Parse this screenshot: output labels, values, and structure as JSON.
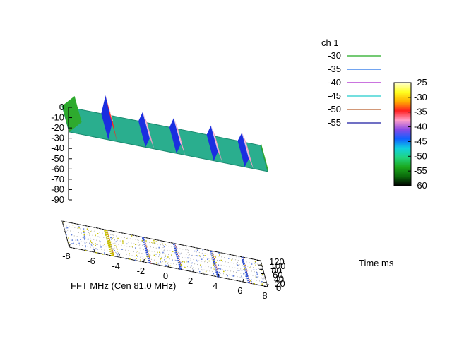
{
  "chart_data": {
    "type": "surface",
    "series_label": "ch 1",
    "xlabel": "FFT MHz (Cen 81.0 MHz)",
    "ylabel": "Time ms",
    "zlabel": "",
    "xlim": [
      -8,
      8
    ],
    "ylim": [
      0,
      120
    ],
    "zlim": [
      -90,
      0
    ],
    "x_ticks": [
      "-8",
      "-6",
      "-4",
      "-2",
      "0",
      "2",
      "4",
      "6",
      "8"
    ],
    "y_ticks": [
      "0",
      "20",
      "40",
      "60",
      "80",
      "100",
      "120"
    ],
    "z_ticks": [
      "0",
      "-10",
      "-20",
      "-30",
      "-40",
      "-50",
      "-60",
      "-70",
      "-80",
      "-90"
    ],
    "contour_legend": [
      {
        "label": "-30",
        "color": "#22aa22"
      },
      {
        "label": "-35",
        "color": "#1e6ee6"
      },
      {
        "label": "-40",
        "color": "#aa22cc"
      },
      {
        "label": "-45",
        "color": "#22cccc"
      },
      {
        "label": "-50",
        "color": "#b85a28"
      },
      {
        "label": "-55",
        "color": "#1a1aa0"
      }
    ],
    "colorbox": {
      "range": [
        -60,
        -25
      ],
      "ticks": [
        "-25",
        "-30",
        "-35",
        "-40",
        "-45",
        "-50",
        "-55",
        "-60"
      ],
      "palette": [
        "#000000",
        "#0b6b0b",
        "#1ca81c",
        "#20d480",
        "#10d0e0",
        "#1060ff",
        "#8a4ae6",
        "#ff9ec8",
        "#ff2020",
        "#ffb000",
        "#ffff20",
        "#ffffd0"
      ]
    },
    "noise_floor_dB": -52,
    "signals": [
      {
        "freq_MHz": -4.5,
        "level_dB": -33
      },
      {
        "freq_MHz": -1.5,
        "level_dB": -42
      },
      {
        "freq_MHz": 1.0,
        "level_dB": -42
      },
      {
        "freq_MHz": 4.0,
        "level_dB": -42
      },
      {
        "freq_MHz": 6.5,
        "level_dB": -43
      }
    ],
    "edge_raise_freq_MHz": -7.5,
    "grid": true
  }
}
